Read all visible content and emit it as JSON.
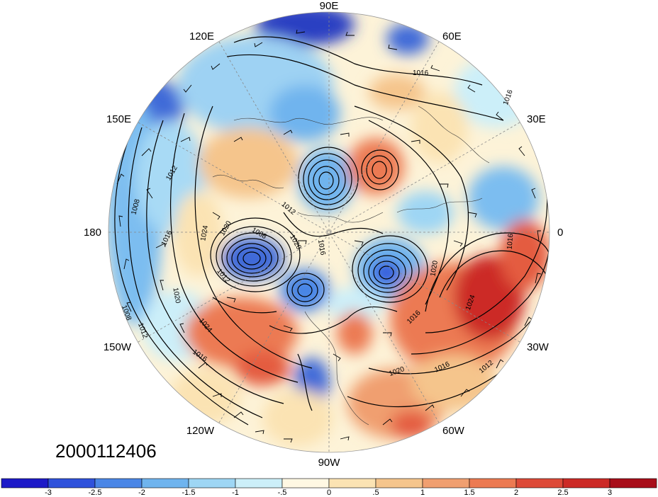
{
  "map": {
    "projection": "polar stereographic, north pole",
    "date_label": "2000112406",
    "longitude_labels": {
      "top": "90E",
      "upper_left": "120E",
      "upper_right": "60E",
      "left_upper": "150E",
      "right_upper": "30E",
      "left": "180",
      "right": "0",
      "left_lower": "150W",
      "right_lower": "30W",
      "lower_left": "120W",
      "lower_right": "60W",
      "bottom": "90W"
    },
    "isobar_labels": [
      "1016",
      "1016",
      "1012",
      "1008",
      "1016",
      "1024",
      "1020",
      "1008",
      "1020",
      "1012",
      "1020",
      "1024",
      "1008",
      "1012",
      "1016",
      "1020",
      "1016",
      "1024",
      "1012",
      "1016",
      "1020",
      "1016",
      "1016",
      "1012"
    ],
    "colors": {
      "strong_negative": "#2a3fc2",
      "negative": "#6fb4ee",
      "weak_negative": "#bfe6f7",
      "neutral": "#fff8e3",
      "weak_positive": "#f5c58c",
      "positive": "#ec7a52",
      "strong_positive": "#cc2a26"
    }
  },
  "colorbar": {
    "tick_labels": [
      "-3",
      "-2.5",
      "-2",
      "-1.5",
      "-1",
      "-.5",
      "0",
      ".5",
      "1",
      "1.5",
      "2",
      "2.5",
      "3"
    ],
    "colors": [
      "#1d1ac8",
      "#2f52db",
      "#4a86e6",
      "#6fb4ee",
      "#9ed6f4",
      "#cceff9",
      "#fff8e3",
      "#fbe3b3",
      "#f5c58c",
      "#f09f70",
      "#ec7a52",
      "#dd4a38",
      "#cc2a26",
      "#a80e1a"
    ]
  }
}
